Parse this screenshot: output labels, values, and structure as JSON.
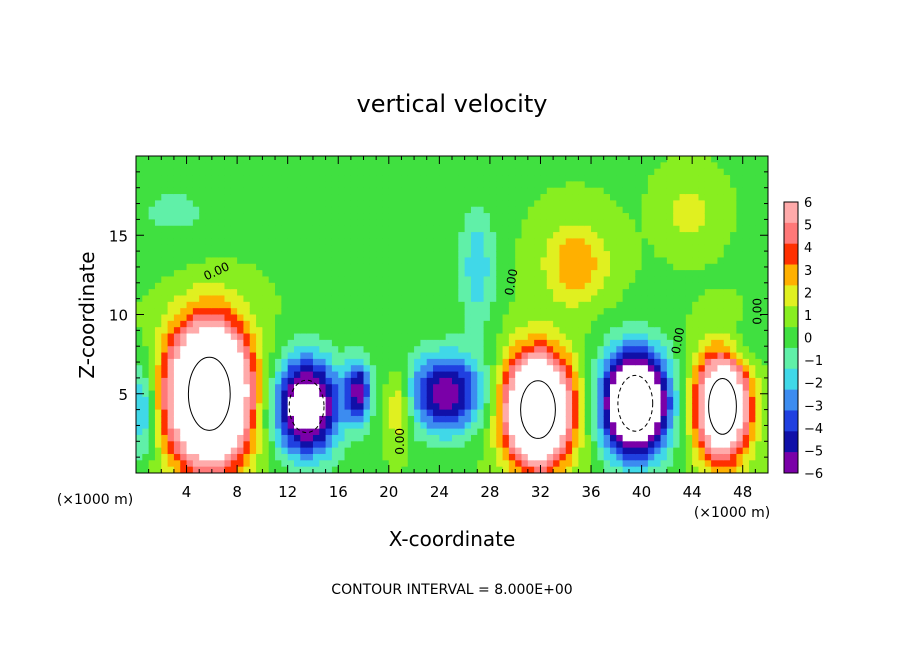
{
  "chart_data": {
    "type": "heatmap",
    "title": "vertical velocity",
    "xlabel": "X-coordinate",
    "ylabel": "Z-coordinate",
    "x_unit": "(×1000 m)",
    "y_unit": "(×1000 m)",
    "footer": "CONTOUR INTERVAL = 8.000E+00",
    "xlim": [
      0,
      50
    ],
    "ylim": [
      0,
      20
    ],
    "x_ticks": [
      4,
      8,
      12,
      16,
      20,
      24,
      28,
      32,
      36,
      40,
      44,
      48
    ],
    "y_ticks": [
      5,
      10,
      15
    ],
    "colorbar": {
      "levels": [
        -6,
        -5,
        -4,
        -3,
        -2,
        -1,
        0,
        1,
        2,
        3,
        4,
        5,
        6
      ],
      "colors": [
        "#7a00a8",
        "#1010a8",
        "#2040e0",
        "#3c8cf0",
        "#40d8e8",
        "#60f0a8",
        "#40e040",
        "#88ee20",
        "#e0f020",
        "#ffb000",
        "#ff3000",
        "#ff7878",
        "#ffaaaa"
      ]
    },
    "contour_labels": [
      {
        "text": "0.00",
        "x": 6.5,
        "y": 12.5,
        "rot": -25
      },
      {
        "text": "0.00",
        "x": 21.2,
        "y": 2.0,
        "rot": -90
      },
      {
        "text": "0.00",
        "x": 30.0,
        "y": 12.0,
        "rot": -80
      },
      {
        "text": "0.00",
        "x": 43.2,
        "y": 8.3,
        "rot": -80
      },
      {
        "text": "0.00",
        "x": 49.5,
        "y": 10.2,
        "rot": -90
      }
    ],
    "features": [
      {
        "x": 5.8,
        "y": 5.0,
        "rx": 3.0,
        "ry": 4.2,
        "v": 18
      },
      {
        "x": 13.5,
        "y": 4.2,
        "rx": 2.5,
        "ry": 3.0,
        "v": -10
      },
      {
        "x": 17.6,
        "y": 5.2,
        "rx": 1.0,
        "ry": 2.0,
        "v": -6
      },
      {
        "x": 24.5,
        "y": 5.0,
        "rx": 3.0,
        "ry": 2.5,
        "v": -7
      },
      {
        "x": 31.8,
        "y": 4.0,
        "rx": 2.5,
        "ry": 3.3,
        "v": 16
      },
      {
        "x": 39.5,
        "y": 4.4,
        "rx": 2.5,
        "ry": 3.2,
        "v": -14
      },
      {
        "x": 46.4,
        "y": 4.2,
        "rx": 2.0,
        "ry": 3.2,
        "v": 13
      },
      {
        "x": 34.8,
        "y": 13.2,
        "rx": 2.5,
        "ry": 2.5,
        "v": 3.0
      },
      {
        "x": 27.0,
        "y": 13.0,
        "rx": 1.5,
        "ry": 4.0,
        "v": -2.6
      },
      {
        "x": 43.8,
        "y": 16.5,
        "rx": 2.0,
        "ry": 2.0,
        "v": 1.6
      },
      {
        "x": 20.8,
        "y": 4.2,
        "rx": 1.0,
        "ry": 2.2,
        "v": 3.0
      },
      {
        "x": 3.0,
        "y": 16.5,
        "rx": 5.0,
        "ry": 3.0,
        "v": -1.1
      },
      {
        "x": 0.5,
        "y": 4.0,
        "rx": 1.0,
        "ry": 3.0,
        "v": -3.5
      },
      {
        "x": 48.0,
        "y": 8.0,
        "rx": 2.0,
        "ry": 1.5,
        "v": -1.4
      }
    ]
  }
}
